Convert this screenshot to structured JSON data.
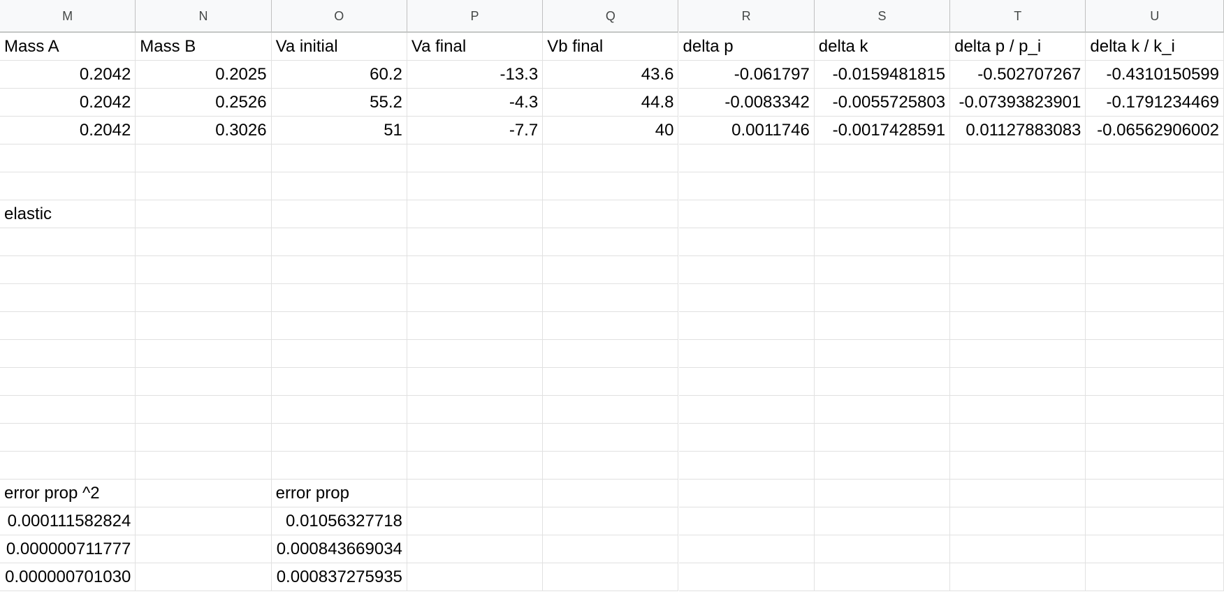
{
  "columns": [
    "M",
    "N",
    "O",
    "P",
    "Q",
    "R",
    "S",
    "T",
    "U"
  ],
  "grid": {
    "row_count": 20,
    "col_count": 9
  },
  "cells": [
    {
      "r": 0,
      "c": 0,
      "v": "Mass A",
      "t": "txt"
    },
    {
      "r": 0,
      "c": 1,
      "v": "Mass B",
      "t": "txt"
    },
    {
      "r": 0,
      "c": 2,
      "v": "Va initial",
      "t": "txt"
    },
    {
      "r": 0,
      "c": 3,
      "v": "Va final",
      "t": "txt"
    },
    {
      "r": 0,
      "c": 4,
      "v": "Vb final",
      "t": "txt"
    },
    {
      "r": 0,
      "c": 5,
      "v": "delta p",
      "t": "txt"
    },
    {
      "r": 0,
      "c": 6,
      "v": "delta k",
      "t": "txt"
    },
    {
      "r": 0,
      "c": 7,
      "v": "delta p / p_i",
      "t": "txt"
    },
    {
      "r": 0,
      "c": 8,
      "v": "delta k / k_i",
      "t": "txt"
    },
    {
      "r": 1,
      "c": 0,
      "v": "0.2042",
      "t": "num"
    },
    {
      "r": 1,
      "c": 1,
      "v": "0.2025",
      "t": "num"
    },
    {
      "r": 1,
      "c": 2,
      "v": "60.2",
      "t": "num"
    },
    {
      "r": 1,
      "c": 3,
      "v": "-13.3",
      "t": "num"
    },
    {
      "r": 1,
      "c": 4,
      "v": "43.6",
      "t": "num"
    },
    {
      "r": 1,
      "c": 5,
      "v": "-0.061797",
      "t": "num"
    },
    {
      "r": 1,
      "c": 6,
      "v": "-0.0159481815",
      "t": "num"
    },
    {
      "r": 1,
      "c": 7,
      "v": "-0.502707267",
      "t": "num"
    },
    {
      "r": 1,
      "c": 8,
      "v": "-0.4310150599",
      "t": "num"
    },
    {
      "r": 2,
      "c": 0,
      "v": "0.2042",
      "t": "num"
    },
    {
      "r": 2,
      "c": 1,
      "v": "0.2526",
      "t": "num"
    },
    {
      "r": 2,
      "c": 2,
      "v": "55.2",
      "t": "num"
    },
    {
      "r": 2,
      "c": 3,
      "v": "-4.3",
      "t": "num"
    },
    {
      "r": 2,
      "c": 4,
      "v": "44.8",
      "t": "num"
    },
    {
      "r": 2,
      "c": 5,
      "v": "-0.0083342",
      "t": "num"
    },
    {
      "r": 2,
      "c": 6,
      "v": "-0.0055725803",
      "t": "num"
    },
    {
      "r": 2,
      "c": 7,
      "v": "-0.07393823901",
      "t": "num"
    },
    {
      "r": 2,
      "c": 8,
      "v": "-0.1791234469",
      "t": "num"
    },
    {
      "r": 3,
      "c": 0,
      "v": "0.2042",
      "t": "num"
    },
    {
      "r": 3,
      "c": 1,
      "v": "0.3026",
      "t": "num"
    },
    {
      "r": 3,
      "c": 2,
      "v": "51",
      "t": "num"
    },
    {
      "r": 3,
      "c": 3,
      "v": "-7.7",
      "t": "num"
    },
    {
      "r": 3,
      "c": 4,
      "v": "40",
      "t": "num"
    },
    {
      "r": 3,
      "c": 5,
      "v": "0.0011746",
      "t": "num"
    },
    {
      "r": 3,
      "c": 6,
      "v": "-0.0017428591",
      "t": "num"
    },
    {
      "r": 3,
      "c": 7,
      "v": "0.01127883083",
      "t": "num"
    },
    {
      "r": 3,
      "c": 8,
      "v": "-0.06562906002",
      "t": "num"
    },
    {
      "r": 6,
      "c": 0,
      "v": "elastic",
      "t": "txt"
    },
    {
      "r": 16,
      "c": 0,
      "v": "error prop ^2",
      "t": "txt"
    },
    {
      "r": 16,
      "c": 2,
      "v": "error prop",
      "t": "txt"
    },
    {
      "r": 17,
      "c": 0,
      "v": "0.000111582824",
      "t": "clip"
    },
    {
      "r": 17,
      "c": 2,
      "v": "0.01056327718",
      "t": "num"
    },
    {
      "r": 18,
      "c": 0,
      "v": "0.000000711777",
      "t": "clip"
    },
    {
      "r": 18,
      "c": 2,
      "v": "0.000843669034",
      "t": "clip"
    },
    {
      "r": 19,
      "c": 0,
      "v": "0.000000701030",
      "t": "clip"
    },
    {
      "r": 19,
      "c": 2,
      "v": "0.000837275935",
      "t": "clip"
    }
  ]
}
